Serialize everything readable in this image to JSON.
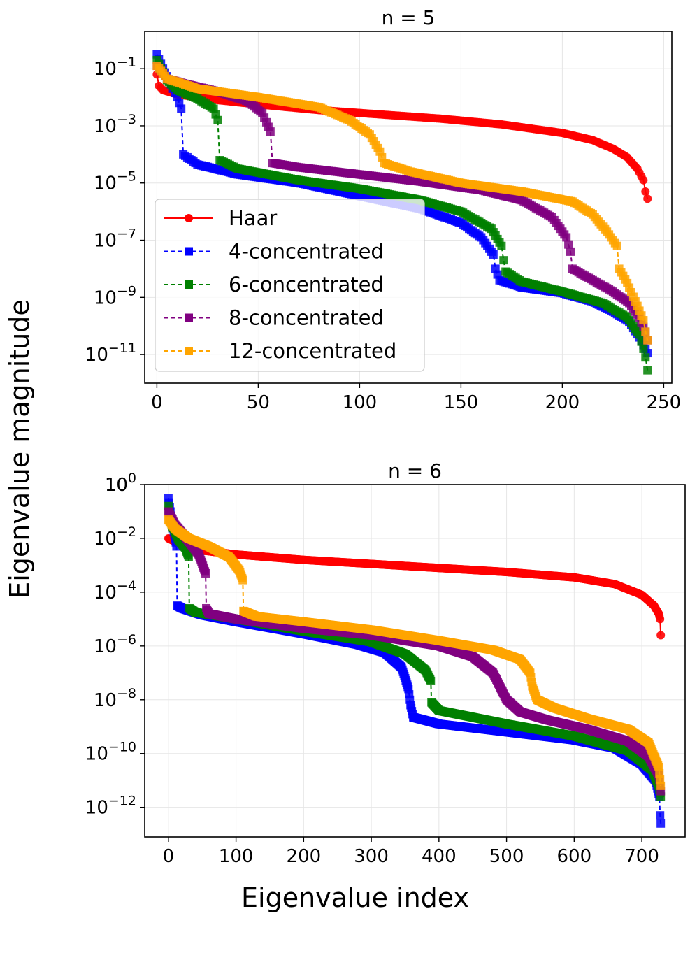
{
  "figure": {
    "ylabel": "Eigenvalue magnitude",
    "xlabel": "Eigenvalue index"
  },
  "chart_data": [
    {
      "type": "line",
      "title": "n = 5",
      "xlabel": "",
      "ylabel": "",
      "yscale": "log",
      "xlim": [
        -6,
        254
      ],
      "ylim_exp": [
        -12,
        0.3
      ],
      "xticks": [
        0,
        50,
        100,
        150,
        200,
        250
      ],
      "ytick_exps": [
        -1,
        -3,
        -5,
        -7,
        -9,
        -11
      ],
      "grid": true,
      "legend": {
        "position": "lower-left"
      },
      "series": [
        {
          "name": "Haar",
          "color": "#ff0000",
          "marker": "circle",
          "dashed": false,
          "count": 243,
          "points": [
            [
              0,
              -1.2
            ],
            [
              1,
              -1.6
            ],
            [
              3,
              -1.75
            ],
            [
              10,
              -1.9
            ],
            [
              30,
              -2.1
            ],
            [
              50,
              -2.25
            ],
            [
              80,
              -2.45
            ],
            [
              110,
              -2.6
            ],
            [
              140,
              -2.75
            ],
            [
              170,
              -2.95
            ],
            [
              200,
              -3.25
            ],
            [
              215,
              -3.5
            ],
            [
              225,
              -3.8
            ],
            [
              232,
              -4.1
            ],
            [
              237,
              -4.5
            ],
            [
              240,
              -4.9
            ],
            [
              241,
              -5.3
            ],
            [
              242,
              -5.55
            ]
          ]
        },
        {
          "name": "4-concentrated",
          "color": "#0000ff",
          "marker": "square",
          "dashed": true,
          "count": 243,
          "points": [
            [
              0,
              -0.5
            ],
            [
              3,
              -1
            ],
            [
              6,
              -1.4
            ],
            [
              10,
              -2
            ],
            [
              12,
              -2.4
            ],
            [
              13,
              -4.0
            ],
            [
              20,
              -4.35
            ],
            [
              40,
              -4.7
            ],
            [
              70,
              -5.0
            ],
            [
              100,
              -5.45
            ],
            [
              130,
              -5.9
            ],
            [
              150,
              -6.4
            ],
            [
              160,
              -6.9
            ],
            [
              166,
              -7.5
            ],
            [
              167,
              -8.0
            ],
            [
              169,
              -8.4
            ],
            [
              180,
              -8.65
            ],
            [
              200,
              -8.85
            ],
            [
              215,
              -9.15
            ],
            [
              225,
              -9.5
            ],
            [
              233,
              -9.85
            ],
            [
              238,
              -10.4
            ],
            [
              241,
              -10.8
            ],
            [
              242,
              -10.95
            ]
          ]
        },
        {
          "name": "6-concentrated",
          "color": "#008000",
          "marker": "square",
          "dashed": true,
          "count": 243,
          "points": [
            [
              0,
              -0.7
            ],
            [
              5,
              -1.4
            ],
            [
              10,
              -1.75
            ],
            [
              20,
              -2.05
            ],
            [
              28,
              -2.4
            ],
            [
              30,
              -2.8
            ],
            [
              31,
              -4.2
            ],
            [
              40,
              -4.5
            ],
            [
              70,
              -4.9
            ],
            [
              100,
              -5.2
            ],
            [
              130,
              -5.6
            ],
            [
              150,
              -6.0
            ],
            [
              165,
              -6.6
            ],
            [
              170,
              -7.2
            ],
            [
              171,
              -7.7
            ],
            [
              172,
              -8.1
            ],
            [
              180,
              -8.45
            ],
            [
              200,
              -8.8
            ],
            [
              220,
              -9.2
            ],
            [
              232,
              -9.7
            ],
            [
              238,
              -10.3
            ],
            [
              240,
              -10.8
            ],
            [
              241,
              -11.1
            ],
            [
              242,
              -11.55
            ]
          ]
        },
        {
          "name": "8-concentrated",
          "color": "#800080",
          "marker": "square",
          "dashed": true,
          "count": 243,
          "points": [
            [
              0,
              -0.9
            ],
            [
              5,
              -1.35
            ],
            [
              15,
              -1.55
            ],
            [
              30,
              -1.8
            ],
            [
              45,
              -2.15
            ],
            [
              52,
              -2.55
            ],
            [
              56,
              -3.2
            ],
            [
              57,
              -4.3
            ],
            [
              70,
              -4.45
            ],
            [
              100,
              -4.7
            ],
            [
              130,
              -4.95
            ],
            [
              160,
              -5.25
            ],
            [
              180,
              -5.6
            ],
            [
              195,
              -6.2
            ],
            [
              202,
              -6.9
            ],
            [
              204,
              -7.4
            ],
            [
              205,
              -8.0
            ],
            [
              215,
              -8.4
            ],
            [
              225,
              -8.8
            ],
            [
              233,
              -9.2
            ],
            [
              238,
              -9.7
            ],
            [
              241,
              -10.2
            ],
            [
              242,
              -10.5
            ]
          ]
        },
        {
          "name": "12-concentrated",
          "color": "#ffa500",
          "marker": "square",
          "dashed": true,
          "count": 243,
          "points": [
            [
              0,
              -0.9
            ],
            [
              5,
              -1.35
            ],
            [
              20,
              -1.7
            ],
            [
              50,
              -2.0
            ],
            [
              80,
              -2.35
            ],
            [
              95,
              -2.8
            ],
            [
              105,
              -3.3
            ],
            [
              110,
              -3.9
            ],
            [
              112,
              -4.3
            ],
            [
              125,
              -4.6
            ],
            [
              150,
              -5.0
            ],
            [
              180,
              -5.3
            ],
            [
              205,
              -5.65
            ],
            [
              215,
              -6.1
            ],
            [
              222,
              -6.7
            ],
            [
              227,
              -7.2
            ],
            [
              228,
              -8.0
            ],
            [
              232,
              -8.5
            ],
            [
              237,
              -9.3
            ],
            [
              240,
              -9.8
            ],
            [
              241,
              -10.2
            ],
            [
              242,
              -10.5
            ]
          ]
        }
      ]
    },
    {
      "type": "line",
      "title": "n = 6",
      "xlabel": "Eigenvalue index",
      "ylabel": "",
      "yscale": "log",
      "xlim": [
        -35,
        764
      ],
      "ylim_exp": [
        -13.1,
        0
      ],
      "xticks": [
        0,
        100,
        200,
        300,
        400,
        500,
        600,
        700
      ],
      "ytick_exps": [
        0,
        -2,
        -4,
        -6,
        -8,
        -10,
        -12
      ],
      "grid": true,
      "legend": null,
      "series": [
        {
          "name": "Haar",
          "color": "#ff0000",
          "marker": "circle",
          "dashed": false,
          "count": 729,
          "points": [
            [
              0,
              -2.0
            ],
            [
              20,
              -2.25
            ],
            [
              50,
              -2.45
            ],
            [
              100,
              -2.6
            ],
            [
              200,
              -2.8
            ],
            [
              300,
              -2.95
            ],
            [
              400,
              -3.1
            ],
            [
              500,
              -3.25
            ],
            [
              600,
              -3.45
            ],
            [
              660,
              -3.7
            ],
            [
              700,
              -4.1
            ],
            [
              718,
              -4.5
            ],
            [
              725,
              -4.8
            ],
            [
              727,
              -5.0
            ],
            [
              728,
              -5.6
            ]
          ]
        },
        {
          "name": "4-concentrated",
          "color": "#0000ff",
          "marker": "square",
          "dashed": true,
          "count": 729,
          "points": [
            [
              0,
              -0.5
            ],
            [
              3,
              -1.0
            ],
            [
              6,
              -1.5
            ],
            [
              10,
              -2.0
            ],
            [
              12,
              -2.3
            ],
            [
              13,
              -4.5
            ],
            [
              20,
              -4.6
            ],
            [
              50,
              -4.85
            ],
            [
              100,
              -5.1
            ],
            [
              200,
              -5.55
            ],
            [
              280,
              -5.95
            ],
            [
              320,
              -6.25
            ],
            [
              345,
              -6.8
            ],
            [
              355,
              -7.6
            ],
            [
              358,
              -8.2
            ],
            [
              362,
              -8.65
            ],
            [
              400,
              -8.9
            ],
            [
              500,
              -9.2
            ],
            [
              600,
              -9.5
            ],
            [
              660,
              -9.8
            ],
            [
              700,
              -10.4
            ],
            [
              720,
              -11.0
            ],
            [
              726,
              -11.6
            ],
            [
              727,
              -12.3
            ],
            [
              728,
              -12.6
            ]
          ]
        },
        {
          "name": "6-concentrated",
          "color": "#008000",
          "marker": "square",
          "dashed": true,
          "count": 729,
          "points": [
            [
              0,
              -0.8
            ],
            [
              5,
              -1.5
            ],
            [
              15,
              -2.05
            ],
            [
              25,
              -2.35
            ],
            [
              30,
              -2.7
            ],
            [
              31,
              -4.6
            ],
            [
              40,
              -4.75
            ],
            [
              100,
              -5.0
            ],
            [
              200,
              -5.45
            ],
            [
              300,
              -5.85
            ],
            [
              350,
              -6.3
            ],
            [
              380,
              -6.9
            ],
            [
              388,
              -7.3
            ],
            [
              389,
              -8.1
            ],
            [
              400,
              -8.4
            ],
            [
              500,
              -8.9
            ],
            [
              600,
              -9.35
            ],
            [
              680,
              -9.9
            ],
            [
              715,
              -10.6
            ],
            [
              725,
              -11.2
            ],
            [
              728,
              -11.6
            ]
          ]
        },
        {
          "name": "8-concentrated",
          "color": "#800080",
          "marker": "square",
          "dashed": true,
          "count": 729,
          "points": [
            [
              0,
              -1.0
            ],
            [
              10,
              -1.5
            ],
            [
              30,
              -2.1
            ],
            [
              45,
              -2.6
            ],
            [
              55,
              -3.3
            ],
            [
              56,
              -4.6
            ],
            [
              60,
              -4.8
            ],
            [
              100,
              -5.0
            ],
            [
              200,
              -5.35
            ],
            [
              300,
              -5.6
            ],
            [
              400,
              -6.0
            ],
            [
              450,
              -6.4
            ],
            [
              480,
              -7.0
            ],
            [
              492,
              -7.6
            ],
            [
              500,
              -8.0
            ],
            [
              520,
              -8.45
            ],
            [
              560,
              -8.75
            ],
            [
              620,
              -9.1
            ],
            [
              680,
              -9.55
            ],
            [
              710,
              -10.1
            ],
            [
              725,
              -10.8
            ],
            [
              728,
              -11.4
            ]
          ]
        },
        {
          "name": "12-concentrated",
          "color": "#ffa500",
          "marker": "square",
          "dashed": true,
          "count": 729,
          "points": [
            [
              0,
              -1.3
            ],
            [
              10,
              -1.65
            ],
            [
              30,
              -2.0
            ],
            [
              60,
              -2.3
            ],
            [
              90,
              -2.7
            ],
            [
              105,
              -3.2
            ],
            [
              110,
              -3.55
            ],
            [
              111,
              -4.7
            ],
            [
              130,
              -4.9
            ],
            [
              200,
              -5.1
            ],
            [
              300,
              -5.4
            ],
            [
              400,
              -5.8
            ],
            [
              480,
              -6.15
            ],
            [
              520,
              -6.5
            ],
            [
              535,
              -7.0
            ],
            [
              538,
              -7.5
            ],
            [
              545,
              -8.0
            ],
            [
              570,
              -8.3
            ],
            [
              620,
              -8.7
            ],
            [
              680,
              -9.1
            ],
            [
              710,
              -9.6
            ],
            [
              725,
              -10.5
            ],
            [
              728,
              -11.2
            ]
          ]
        }
      ]
    }
  ]
}
